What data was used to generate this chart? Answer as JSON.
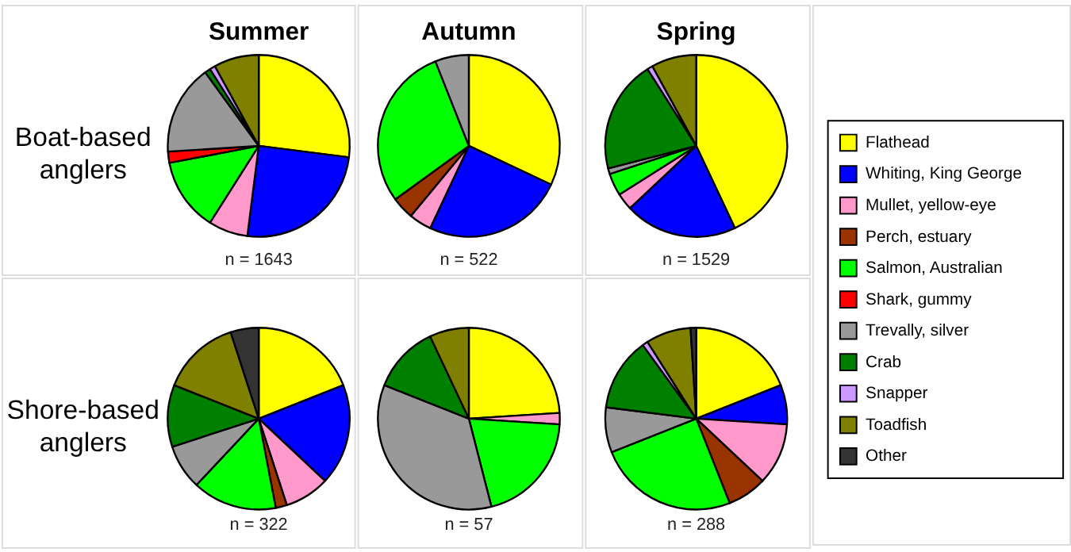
{
  "chart_data": [
    {
      "type": "pie",
      "title": "Summer",
      "categories": [
        "Flathead",
        "Whiting, King George",
        "Mullet, yellow-eye",
        "Perch, estuary",
        "Salmon, Australian",
        "Shark, gummy",
        "Trevally, silver",
        "Crab",
        "Snapper",
        "Toadfish",
        "Other"
      ],
      "values": [
        27,
        25,
        7,
        null,
        13,
        2,
        16,
        1,
        1,
        8,
        null
      ],
      "colors": [
        "#ffff00",
        "#0000ff",
        "#ff99cc",
        "#993300",
        "#00ff00",
        "#ff0000",
        "#999999",
        "#008000",
        "#cc99ff",
        "#808000",
        "#333333"
      ],
      "annotations": [
        "n = 1643",
        "Boat-based anglers"
      ],
      "legend": "right"
    },
    {
      "type": "pie",
      "title": "Autumn",
      "values": [
        32,
        25,
        4,
        4,
        29,
        null,
        6,
        null,
        null,
        null,
        null
      ],
      "colors": [
        "#ffff00",
        "#0000ff",
        "#ff99cc",
        "#993300",
        "#00ff00",
        "#ff0000",
        "#999999",
        "#008000",
        "#cc99ff",
        "#808000",
        "#333333"
      ],
      "annotations": [
        "n = 522"
      ]
    },
    {
      "type": "pie",
      "title": "Spring",
      "values": [
        43,
        20,
        3,
        null,
        4,
        null,
        1,
        20,
        1,
        8,
        null
      ],
      "colors": [
        "#ffff00",
        "#0000ff",
        "#ff99cc",
        "#993300",
        "#00ff00",
        "#ff0000",
        "#999999",
        "#008000",
        "#cc99ff",
        "#808000",
        "#333333"
      ],
      "annotations": [
        "n = 1529"
      ]
    },
    {
      "type": "pie",
      "values": [
        19,
        18,
        8,
        2,
        15,
        null,
        8,
        11,
        null,
        14,
        5
      ],
      "colors": [
        "#ffff00",
        "#0000ff",
        "#ff99cc",
        "#993300",
        "#00ff00",
        "#ff0000",
        "#999999",
        "#008000",
        "#cc99ff",
        "#808000",
        "#333333"
      ],
      "annotations": [
        "n = 322",
        "Shore-based anglers"
      ]
    },
    {
      "type": "pie",
      "values": [
        24,
        null,
        2,
        null,
        20,
        null,
        35,
        12,
        null,
        7,
        null
      ],
      "colors": [
        "#ffff00",
        "#0000ff",
        "#ff99cc",
        "#993300",
        "#00ff00",
        "#ff0000",
        "#999999",
        "#008000",
        "#cc99ff",
        "#808000",
        "#333333"
      ],
      "annotations": [
        "n = 57"
      ]
    },
    {
      "type": "pie",
      "values": [
        19,
        7,
        11,
        7,
        25,
        null,
        8,
        13,
        1,
        8,
        1
      ],
      "colors": [
        "#ffff00",
        "#0000ff",
        "#ff99cc",
        "#993300",
        "#00ff00",
        "#ff0000",
        "#999999",
        "#008000",
        "#cc99ff",
        "#808000",
        "#333333"
      ],
      "annotations": [
        "n = 288"
      ]
    }
  ]
}
